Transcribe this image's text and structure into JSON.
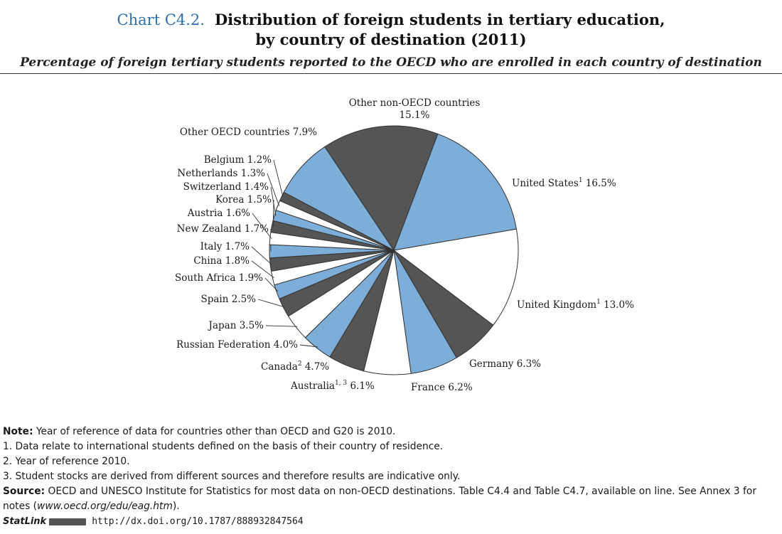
{
  "header": {
    "chart_number": "Chart C4.2.",
    "title_line1": "Distribution of foreign students in tertiary education,",
    "title_line2": "by country of destination (2011)",
    "subtitle": "Percentage of foreign tertiary students reported to the OECD who are enrolled in each country of destination"
  },
  "colors": {
    "blue": "#7daed9",
    "dark": "#555555",
    "white": "#ffffff",
    "outline": "#333333"
  },
  "chart_data": {
    "type": "pie",
    "title": "Distribution of foreign students in tertiary education, by country of destination (2011)",
    "unit": "%",
    "slices": [
      {
        "label": "United States",
        "sup": "1",
        "value": 16.5,
        "color": "blue"
      },
      {
        "label": "United Kingdom",
        "sup": "1",
        "value": 13.0,
        "color": "white"
      },
      {
        "label": "Germany",
        "sup": "",
        "value": 6.3,
        "color": "dark"
      },
      {
        "label": "France",
        "sup": "",
        "value": 6.2,
        "color": "blue"
      },
      {
        "label": "Australia",
        "sup": "1, 3",
        "value": 6.1,
        "color": "white"
      },
      {
        "label": "Canada",
        "sup": "2",
        "value": 4.7,
        "color": "dark"
      },
      {
        "label": "Russian Federation",
        "sup": "",
        "value": 4.0,
        "color": "blue"
      },
      {
        "label": "Japan",
        "sup": "",
        "value": 3.5,
        "color": "white"
      },
      {
        "label": "Spain",
        "sup": "",
        "value": 2.5,
        "color": "dark"
      },
      {
        "label": "South Africa",
        "sup": "",
        "value": 1.9,
        "color": "blue"
      },
      {
        "label": "China",
        "sup": "",
        "value": 1.8,
        "color": "white"
      },
      {
        "label": "Italy",
        "sup": "",
        "value": 1.7,
        "color": "dark"
      },
      {
        "label": "New Zealand",
        "sup": "",
        "value": 1.7,
        "color": "blue"
      },
      {
        "label": "Austria",
        "sup": "",
        "value": 1.6,
        "color": "white"
      },
      {
        "label": "Korea",
        "sup": "",
        "value": 1.5,
        "color": "dark"
      },
      {
        "label": "Switzerland",
        "sup": "",
        "value": 1.4,
        "color": "blue"
      },
      {
        "label": "Netherlands",
        "sup": "",
        "value": 1.3,
        "color": "white"
      },
      {
        "label": "Belgium",
        "sup": "",
        "value": 1.2,
        "color": "dark"
      },
      {
        "label": "Other OECD countries",
        "sup": "",
        "value": 7.9,
        "color": "blue"
      },
      {
        "label": "Other non-OECD countries",
        "sup": "",
        "value": 15.1,
        "color": "dark"
      }
    ]
  },
  "notes": {
    "note_label": "Note:",
    "note_text": "Year of reference of data for countries other than OECD and G20 is 2010.",
    "note1": "1. Data relate to international students defined on the basis of their country of residence.",
    "note2": "2. Year of reference 2010.",
    "note3": "3. Student stocks are derived from different sources and therefore results are indicative only.",
    "source_label": "Source:",
    "source_text": "OECD and UNESCO Institute for Statistics for most data on non-OECD destinations. Table C4.4 and Table C4.7, available on line. See Annex 3 for notes (",
    "source_link": "www.oecd.org/edu/eag.htm",
    "source_end": ")."
  },
  "statlink": {
    "label": "StatLink",
    "url": "http://dx.doi.org/10.1787/888932847564"
  }
}
